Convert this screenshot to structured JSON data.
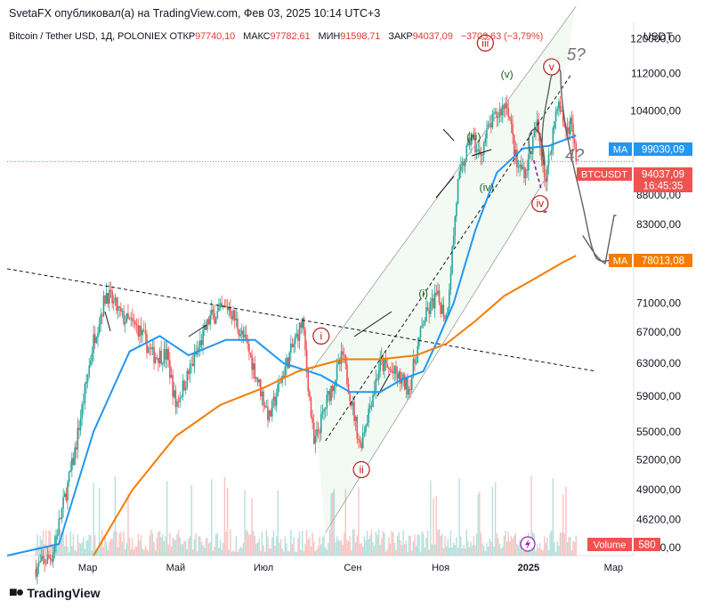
{
  "header": {
    "publisher_line": "SvetaFX опубликовал(а) на TradingView.com, Фев 03, 2025 10:14 UTC+3"
  },
  "legend": {
    "symbol": "Bitcoin / Tether USD, 1Д, POLONIEX",
    "open_label": "ОТКР",
    "open": "97740,10",
    "high_label": "МАКС",
    "high": "97782,61",
    "low_label": "МИН",
    "low": "91598,71",
    "close_label": "ЗАКР",
    "close": "94037,09",
    "change": "−3703,63 (−3,79%)"
  },
  "currency": "USDT",
  "badges": {
    "ma_fast": {
      "label": "MA",
      "value": "99030,09",
      "color": "#2196f3"
    },
    "price": {
      "label": "BTCUSDT",
      "value": "94037,09",
      "countdown": "16:45:35",
      "color": "#ef5350"
    },
    "ma_slow": {
      "label": "MA",
      "value": "78013,08",
      "color": "#f57c00"
    },
    "volume": {
      "label": "Volume",
      "value": "580",
      "color": "#ef5350"
    }
  },
  "footer": {
    "brand": "TradingView"
  },
  "chart_data": {
    "type": "candlestick",
    "symbol": "BTCUSDT",
    "interval": "1D",
    "y_scale": "log",
    "ylim": [
      43000,
      124000
    ],
    "y_ticks": [
      {
        "label": "120000,00",
        "value": 120000
      },
      {
        "label": "112000,00",
        "value": 112000
      },
      {
        "label": "104000,00",
        "value": 104000
      },
      {
        "label": "96000,00",
        "value": 96000
      },
      {
        "label": "88000,00",
        "value": 88000
      },
      {
        "label": "83000,00",
        "value": 83000
      },
      {
        "label": "71000,00",
        "value": 71000
      },
      {
        "label": "67000,00",
        "value": 67000
      },
      {
        "label": "63000,00",
        "value": 63000
      },
      {
        "label": "59000,00",
        "value": 59000
      },
      {
        "label": "55000,00",
        "value": 55000
      },
      {
        "label": "52000,00",
        "value": 52000
      },
      {
        "label": "49000,00",
        "value": 49000
      },
      {
        "label": "46200,00",
        "value": 46200
      },
      {
        "label": "43700,00",
        "value": 43700
      }
    ],
    "x_ticks": [
      {
        "label": "Мар",
        "date": "2024-03-01"
      },
      {
        "label": "Май",
        "date": "2024-05-01"
      },
      {
        "label": "Июл",
        "date": "2024-07-01"
      },
      {
        "label": "Сен",
        "date": "2024-09-01"
      },
      {
        "label": "Ноя",
        "date": "2024-11-01"
      },
      {
        "label": "2025",
        "date": "2025-01-01"
      },
      {
        "label": "Мар",
        "date": "2025-03-01"
      }
    ],
    "xlim": [
      "2024-01-05",
      "2025-03-15"
    ],
    "last_close": 94037.09,
    "price_path": [
      [
        "2024-01-05",
        44000
      ],
      [
        "2024-01-20",
        41500
      ],
      [
        "2024-02-05",
        43000
      ],
      [
        "2024-02-20",
        52000
      ],
      [
        "2024-03-05",
        66000
      ],
      [
        "2024-03-14",
        72500
      ],
      [
        "2024-03-25",
        69000
      ],
      [
        "2024-04-05",
        67500
      ],
      [
        "2024-04-15",
        64000
      ],
      [
        "2024-04-25",
        64000
      ],
      [
        "2024-05-01",
        58000
      ],
      [
        "2024-05-15",
        64000
      ],
      [
        "2024-05-25",
        69000
      ],
      [
        "2024-06-07",
        70500
      ],
      [
        "2024-06-20",
        65000
      ],
      [
        "2024-07-05",
        56500
      ],
      [
        "2024-07-15",
        62000
      ],
      [
        "2024-07-28",
        68500
      ],
      [
        "2024-08-05",
        53500
      ],
      [
        "2024-08-15",
        59000
      ],
      [
        "2024-08-25",
        64000
      ],
      [
        "2024-09-06",
        53500
      ],
      [
        "2024-09-20",
        63000
      ],
      [
        "2024-10-01",
        61500
      ],
      [
        "2024-10-10",
        60000
      ],
      [
        "2024-10-20",
        68500
      ],
      [
        "2024-10-29",
        72000
      ],
      [
        "2024-11-05",
        69000
      ],
      [
        "2024-11-13",
        90000
      ],
      [
        "2024-11-22",
        99000
      ],
      [
        "2024-11-28",
        95000
      ],
      [
        "2024-12-05",
        101000
      ],
      [
        "2024-12-17",
        106000
      ],
      [
        "2024-12-24",
        93000
      ],
      [
        "2024-12-30",
        92500
      ],
      [
        "2025-01-07",
        101000
      ],
      [
        "2025-01-13",
        90500
      ],
      [
        "2025-01-21",
        106000
      ],
      [
        "2025-01-27",
        100000
      ],
      [
        "2025-01-31",
        102000
      ],
      [
        "2025-02-03",
        94037
      ]
    ],
    "series": [
      {
        "kind": "ma_fast",
        "color": "#2196f3",
        "last": 99030.09,
        "points": [
          [
            "2024-01-05",
            43000
          ],
          [
            "2024-02-10",
            44000
          ],
          [
            "2024-03-05",
            55000
          ],
          [
            "2024-03-30",
            64500
          ],
          [
            "2024-04-20",
            66500
          ],
          [
            "2024-05-10",
            64000
          ],
          [
            "2024-06-05",
            66000
          ],
          [
            "2024-06-25",
            66000
          ],
          [
            "2024-07-15",
            63000
          ],
          [
            "2024-08-10",
            61500
          ],
          [
            "2024-08-30",
            59500
          ],
          [
            "2024-09-20",
            59500
          ],
          [
            "2024-10-05",
            61000
          ],
          [
            "2024-10-20",
            62000
          ],
          [
            "2024-10-30",
            66000
          ],
          [
            "2024-11-10",
            71000
          ],
          [
            "2024-11-25",
            82000
          ],
          [
            "2024-12-10",
            92000
          ],
          [
            "2024-12-28",
            96500
          ],
          [
            "2025-01-15",
            97000
          ],
          [
            "2025-02-03",
            99030
          ]
        ]
      },
      {
        "kind": "ma_slow",
        "color": "#f57c00",
        "last": 78013.08,
        "points": [
          [
            "2024-03-05",
            43000
          ],
          [
            "2024-04-01",
            49000
          ],
          [
            "2024-05-01",
            54500
          ],
          [
            "2024-06-01",
            58000
          ],
          [
            "2024-07-01",
            60000
          ],
          [
            "2024-07-25",
            62000
          ],
          [
            "2024-08-25",
            63500
          ],
          [
            "2024-09-20",
            63500
          ],
          [
            "2024-10-15",
            64000
          ],
          [
            "2024-11-05",
            65500
          ],
          [
            "2024-11-25",
            68500
          ],
          [
            "2024-12-15",
            72000
          ],
          [
            "2025-01-05",
            74500
          ],
          [
            "2025-01-25",
            77000
          ],
          [
            "2025-02-03",
            78013
          ]
        ]
      }
    ],
    "volume": {
      "last": 580
    },
    "annotations": {
      "wave_labels": [
        {
          "text": "i",
          "date": "2024-08-10",
          "price": 66500,
          "color": "#b71c1c",
          "circled": true
        },
        {
          "text": "ii",
          "date": "2024-09-07",
          "price": 51000,
          "color": "#b71c1c",
          "circled": true
        },
        {
          "text": "iii",
          "date": "2024-12-02",
          "price": 119000,
          "color": "#b71c1c",
          "circled": true
        },
        {
          "text": "iv",
          "date": "2025-01-09",
          "price": 86500,
          "color": "#b71c1c",
          "circled": true
        },
        {
          "text": "v",
          "date": "2025-01-17",
          "price": 113500,
          "color": "#b71c1c",
          "circled": true
        },
        {
          "text": "(i)",
          "date": "2024-10-20",
          "price": 72500,
          "color": "#1b5e20",
          "circled": false
        },
        {
          "text": "(iii)",
          "date": "2024-11-24",
          "price": 99000,
          "color": "#1b5e20",
          "circled": false
        },
        {
          "text": "(iv)",
          "date": "2024-12-03",
          "price": 89500,
          "color": "#1b5e20",
          "circled": false
        },
        {
          "text": "(v)",
          "date": "2024-12-17",
          "price": 112000,
          "color": "#1b5e20",
          "circled": false
        },
        {
          "text": "5?",
          "date": "2025-02-03",
          "price": 116000,
          "color": "#757575",
          "circled": false
        },
        {
          "text": "4?",
          "date": "2025-02-02",
          "price": 95000,
          "color": "#757575",
          "circled": false
        }
      ],
      "trend_lines": [
        {
          "style": "dashed",
          "color": "#131722",
          "from": [
            "2024-01-05",
            76000
          ],
          "to": [
            "2025-02-17",
            62000
          ]
        },
        {
          "style": "dashed",
          "color": "#131722",
          "from": [
            "2024-08-13",
            54000
          ],
          "to": [
            "2025-01-31",
            112000
          ]
        },
        {
          "style": "solid",
          "color": "#9e9e9e",
          "from": [
            "2024-08-03",
            62000
          ],
          "to": [
            "2025-02-03",
            128000
          ]
        },
        {
          "style": "solid",
          "color": "#9e9e9e",
          "from": [
            "2024-08-13",
            45000
          ],
          "to": [
            "2025-01-13",
            91000
          ]
        }
      ]
    }
  }
}
